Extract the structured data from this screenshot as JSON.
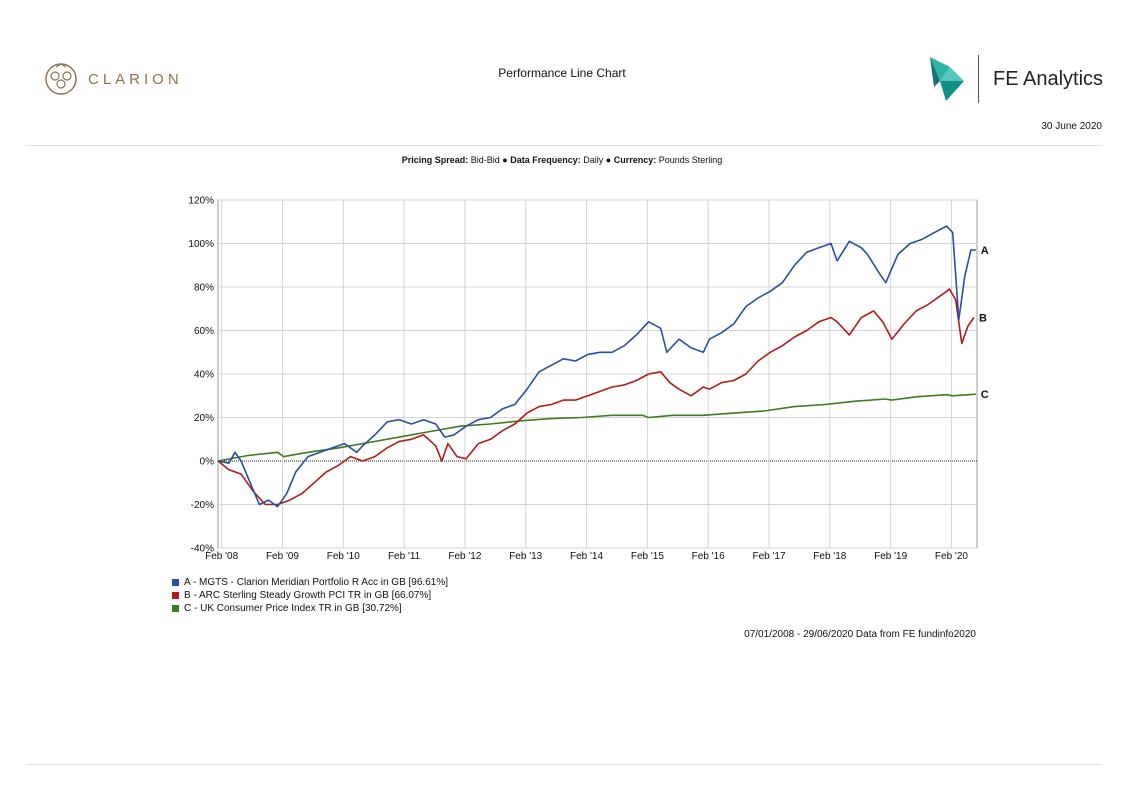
{
  "header": {
    "brand_left": "CLARION",
    "title": "Performance Line Chart",
    "brand_right": "FE Analytics",
    "date": "30 June 2020"
  },
  "settings": {
    "spread_label": "Pricing Spread:",
    "spread_value": "Bid-Bid",
    "freq_label": "Data Frequency:",
    "freq_value": "Daily",
    "currency_label": "Currency:",
    "currency_value": "Pounds Sterling"
  },
  "chart_data": {
    "type": "line",
    "ylim": [
      -40,
      120
    ],
    "y_ticks": [
      -40,
      -20,
      0,
      20,
      40,
      60,
      80,
      100,
      120
    ],
    "y_tick_labels": [
      "-40%",
      "-20%",
      "0%",
      "20%",
      "40%",
      "60%",
      "80%",
      "100%",
      "120%"
    ],
    "x_tick_labels": [
      "Feb '08",
      "Feb '09",
      "Feb '10",
      "Feb '11",
      "Feb '12",
      "Feb '13",
      "Feb '14",
      "Feb '15",
      "Feb '16",
      "Feb '17",
      "Feb '18",
      "Feb '19",
      "Feb '20"
    ],
    "x_ticks": [
      2008.08,
      2009.08,
      2010.08,
      2011.08,
      2012.08,
      2013.08,
      2014.08,
      2015.08,
      2016.08,
      2017.08,
      2018.08,
      2019.08,
      2020.08
    ],
    "xlim": [
      2008.02,
      2020.5
    ],
    "grid": true,
    "series": [
      {
        "name": "A - MGTS - Clarion Meridian Portfolio R Acc in GB [96.61%]",
        "end_label": "A",
        "color": "#2a4ea0",
        "x": [
          2008.02,
          2008.2,
          2008.3,
          2008.4,
          2008.55,
          2008.7,
          2008.85,
          2009.0,
          2009.15,
          2009.3,
          2009.5,
          2009.7,
          2009.9,
          2010.1,
          2010.3,
          2010.4,
          2010.6,
          2010.8,
          2011.0,
          2011.2,
          2011.4,
          2011.6,
          2011.75,
          2011.9,
          2012.1,
          2012.3,
          2012.5,
          2012.7,
          2012.9,
          2013.1,
          2013.3,
          2013.5,
          2013.7,
          2013.9,
          2014.1,
          2014.3,
          2014.5,
          2014.7,
          2014.9,
          2015.1,
          2015.3,
          2015.4,
          2015.6,
          2015.8,
          2016.0,
          2016.1,
          2016.3,
          2016.5,
          2016.7,
          2016.9,
          2017.1,
          2017.3,
          2017.5,
          2017.7,
          2017.9,
          2018.1,
          2018.2,
          2018.4,
          2018.6,
          2018.7,
          2018.9,
          2019.0,
          2019.2,
          2019.4,
          2019.6,
          2019.8,
          2020.0,
          2020.1,
          2020.2,
          2020.3,
          2020.4,
          2020.48
        ],
        "y": [
          0,
          -1,
          4,
          0,
          -10,
          -20,
          -18,
          -21,
          -15,
          -5,
          2,
          4,
          6,
          8,
          4,
          7,
          12,
          18,
          19,
          17,
          19,
          17,
          11,
          12,
          16,
          19,
          20,
          24,
          26,
          33,
          41,
          44,
          47,
          46,
          49,
          50,
          50,
          53,
          58,
          64,
          61,
          50,
          56,
          52,
          50,
          56,
          59,
          63,
          71,
          75,
          78,
          82,
          90,
          96,
          98,
          100,
          92,
          101,
          98,
          95,
          86,
          82,
          95,
          100,
          102,
          105,
          108,
          105,
          65,
          85,
          97,
          97
        ]
      },
      {
        "name": "B - ARC Sterling Steady Growth PCI TR in GB [66.07%]",
        "end_label": "B",
        "color": "#b31b1b",
        "x": [
          2008.02,
          2008.2,
          2008.4,
          2008.6,
          2008.8,
          2009.0,
          2009.2,
          2009.4,
          2009.6,
          2009.8,
          2010.0,
          2010.2,
          2010.4,
          2010.6,
          2010.8,
          2011.0,
          2011.2,
          2011.4,
          2011.6,
          2011.7,
          2011.8,
          2011.95,
          2012.1,
          2012.3,
          2012.5,
          2012.7,
          2012.9,
          2013.1,
          2013.3,
          2013.5,
          2013.7,
          2013.9,
          2014.1,
          2014.3,
          2014.5,
          2014.7,
          2014.9,
          2015.1,
          2015.3,
          2015.45,
          2015.6,
          2015.8,
          2016.0,
          2016.1,
          2016.3,
          2016.5,
          2016.7,
          2016.9,
          2017.1,
          2017.3,
          2017.5,
          2017.7,
          2017.9,
          2018.1,
          2018.2,
          2018.4,
          2018.6,
          2018.8,
          2018.95,
          2019.1,
          2019.3,
          2019.5,
          2019.7,
          2019.9,
          2020.05,
          2020.15,
          2020.25,
          2020.35,
          2020.45
        ],
        "y": [
          0,
          -4,
          -6,
          -14,
          -20,
          -20,
          -18,
          -15,
          -10,
          -5,
          -2,
          2,
          0,
          2,
          6,
          9,
          10,
          12,
          7,
          0,
          8,
          2,
          1,
          8,
          10,
          14,
          17,
          22,
          25,
          26,
          28,
          28,
          30,
          32,
          34,
          35,
          37,
          40,
          41,
          36,
          33,
          30,
          34,
          33,
          36,
          37,
          40,
          46,
          50,
          53,
          57,
          60,
          64,
          66,
          64,
          58,
          66,
          69,
          64,
          56,
          63,
          69,
          72,
          76,
          79,
          74,
          54,
          62,
          66
        ]
      },
      {
        "name": "C - UK Consumer Price Index TR in GB [30.72%]",
        "end_label": "C",
        "color": "#3f7a1f",
        "x": [
          2008.02,
          2008.5,
          2009.0,
          2009.1,
          2009.5,
          2010.0,
          2010.5,
          2011.0,
          2011.5,
          2012.0,
          2012.5,
          2013.0,
          2013.5,
          2014.0,
          2014.5,
          2015.0,
          2015.1,
          2015.5,
          2016.0,
          2016.5,
          2017.0,
          2017.5,
          2018.0,
          2018.5,
          2019.0,
          2019.1,
          2019.5,
          2020.0,
          2020.1,
          2020.48
        ],
        "y": [
          0,
          2.5,
          4,
          2,
          4,
          6,
          8.5,
          11,
          13.5,
          16,
          17,
          18.5,
          19.5,
          20,
          21,
          21,
          20,
          21,
          21,
          22,
          23,
          25,
          26,
          27.5,
          28.5,
          28,
          29.5,
          30.5,
          30,
          30.7
        ]
      }
    ]
  },
  "footer": {
    "source": "07/01/2008 - 29/06/2020 Data from FE fundinfo2020"
  }
}
